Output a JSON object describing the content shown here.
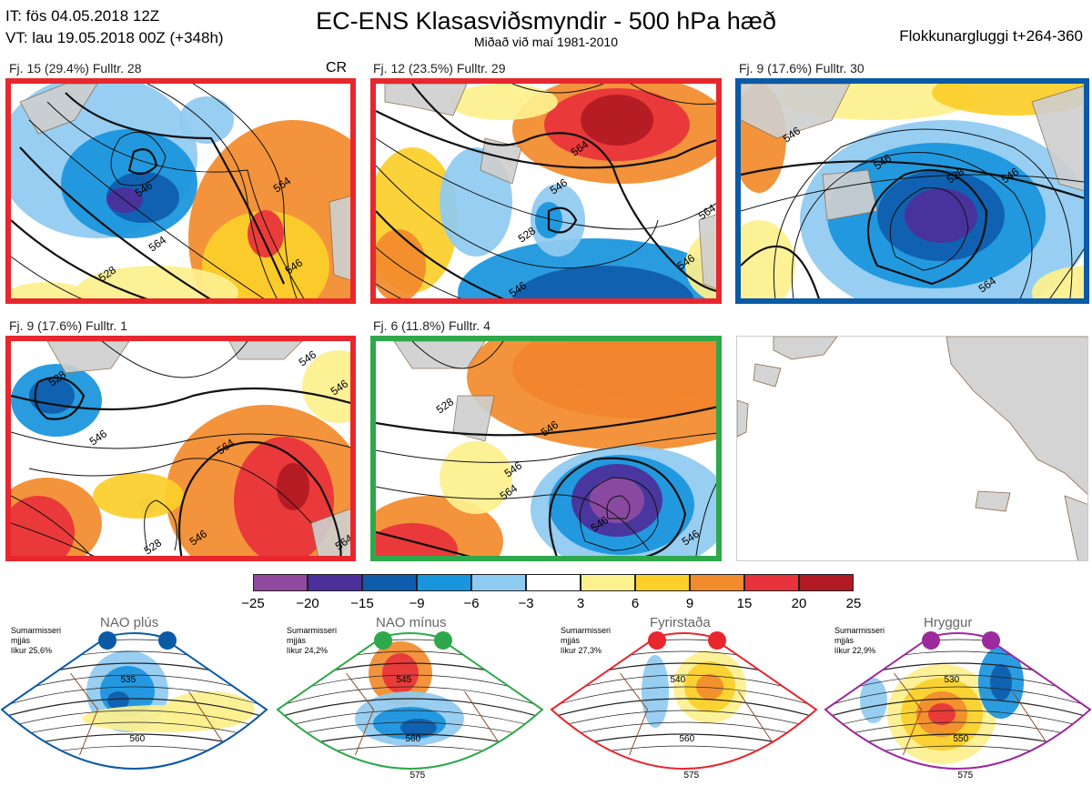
{
  "header": {
    "it_line": "IT: fös 04.05.2018 12Z",
    "vt_line": "VT: lau 19.05.2018 00Z  (+348h)",
    "title": "EC-ENS Klasasviðsmyndir - 500 hPa hæð",
    "subtitle": "Miðað við maí 1981-2010",
    "window": "Flokkunargluggi t+264-360"
  },
  "panels": [
    {
      "label": "Fj. 15 (29.4%)   Fulltr. 28",
      "border": "#e8262d",
      "extra": "CR",
      "contours": [
        "528",
        "546",
        "546",
        "564",
        "564",
        "56"
      ]
    },
    {
      "label": "Fj. 12 (23.5%)   Fulltr. 29",
      "border": "#e8262d",
      "extra": "",
      "contours": [
        "528",
        "546",
        "546",
        "564",
        "564",
        "546"
      ]
    },
    {
      "label": "Fj. 9 (17.6%)   Fulltr. 30",
      "border": "#0a5aa6",
      "extra": "",
      "contours": [
        "546",
        "546",
        "528",
        "546",
        "564"
      ]
    },
    {
      "label": "Fj. 9 (17.6%)   Fulltr. 1",
      "border": "#e8262d",
      "extra": "",
      "contours": [
        "528",
        "546",
        "564",
        "546",
        "528",
        "546",
        "546",
        "564"
      ]
    },
    {
      "label": "Fj. 6 (11.8%)   Fulltr. 4",
      "border": "#2ea84b",
      "extra": "",
      "contours": [
        "528",
        "546",
        "546",
        "564",
        "546",
        "546"
      ]
    }
  ],
  "colorbar": {
    "colors": [
      "#8f4aa0",
      "#4c2f9a",
      "#0f5cad",
      "#1994de",
      "#8fcaf0",
      "#ffffff",
      "#fdf08e",
      "#fbcf2a",
      "#f28b2c",
      "#e8333a",
      "#b11a22"
    ],
    "ticks": [
      "−25",
      "−20",
      "−15",
      "−9",
      "−6",
      "−3",
      "3",
      "6",
      "9",
      "15",
      "20",
      "25"
    ]
  },
  "regimes": [
    {
      "name": "NAO plús",
      "note_line1": "Sumarmisseri",
      "note_line2": "mjjás",
      "note_line3": "líkur 25,6%",
      "color": "#0a5aa6",
      "contours": [
        "535",
        "560"
      ]
    },
    {
      "name": "NAO mínus",
      "note_line1": "Sumarmisseri",
      "note_line2": "mjjás",
      "note_line3": "líkur 24,2%",
      "color": "#2ea84b",
      "contours": [
        "545",
        "560",
        "575"
      ]
    },
    {
      "name": "Fyrirstaða",
      "note_line1": "Sumarmisseri",
      "note_line2": "mjjás",
      "note_line3": "líkur 27,3%",
      "color": "#e8262d",
      "contours": [
        "540",
        "560",
        "575"
      ]
    },
    {
      "name": "Hryggur",
      "note_line1": "Sumarmisseri",
      "note_line2": "mjjás",
      "note_line3": "líkur 22,9%",
      "color": "#9b2a9c",
      "contours": [
        "530",
        "550",
        "575"
      ]
    }
  ]
}
